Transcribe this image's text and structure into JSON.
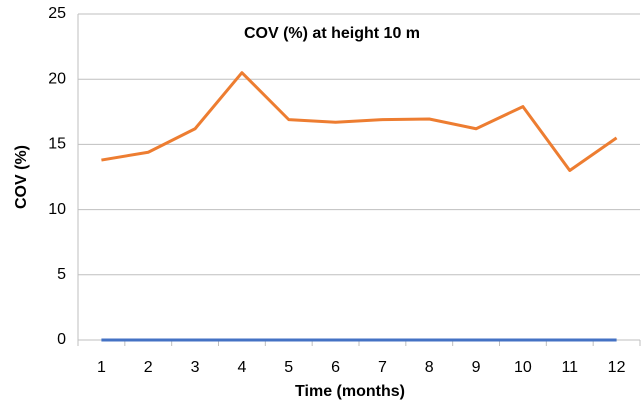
{
  "chart_data": {
    "type": "line",
    "title": "COV (%) at height 10 m",
    "x_label": "Time (months)",
    "y_label": "COV (%)",
    "categories": [
      "1",
      "2",
      "3",
      "4",
      "5",
      "6",
      "7",
      "8",
      "9",
      "10",
      "11",
      "12"
    ],
    "series": [
      {
        "color": "#4472c4",
        "values": [
          0,
          0,
          0,
          0,
          0,
          0,
          0,
          0,
          0,
          0,
          0,
          0
        ]
      },
      {
        "color": "#ed7d31",
        "values": [
          13.8,
          14.4,
          16.2,
          20.5,
          16.9,
          16.7,
          16.9,
          16.95,
          16.2,
          17.9,
          13.0,
          15.5
        ]
      }
    ],
    "ylim": [
      0,
      25
    ],
    "yticks": [
      0,
      5,
      10,
      15,
      20,
      25
    ],
    "grid": true
  }
}
